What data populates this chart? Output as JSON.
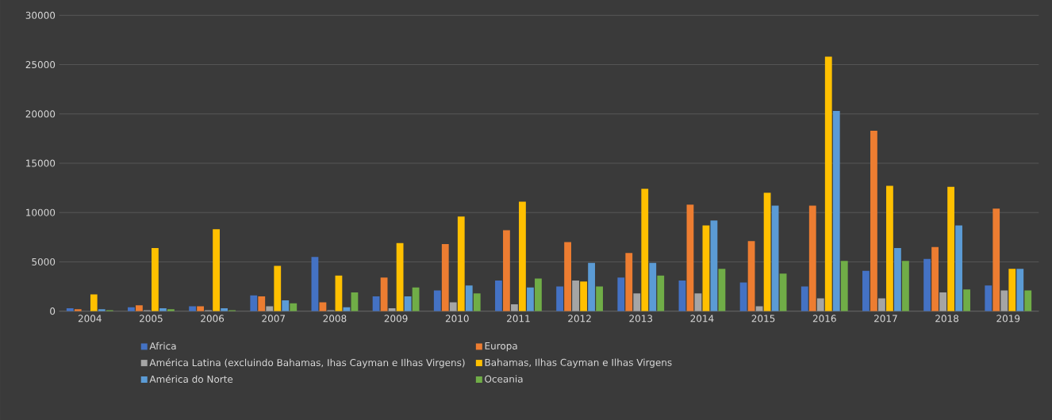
{
  "chart_data": {
    "type": "bar",
    "categories": [
      "2004",
      "2005",
      "2006",
      "2007",
      "2008",
      "2009",
      "2010",
      "2011",
      "2012",
      "2013",
      "2014",
      "2015",
      "2016",
      "2017",
      "2018",
      "2019"
    ],
    "series": [
      {
        "name": "Africa",
        "color": "#4472c4",
        "values": [
          300,
          400,
          500,
          1600,
          5500,
          1500,
          2100,
          3100,
          2500,
          3400,
          3100,
          2900,
          2500,
          4100,
          5300,
          2600
        ]
      },
      {
        "name": "Europa",
        "color": "#ed7d31",
        "values": [
          200,
          600,
          500,
          1500,
          900,
          3400,
          6800,
          8200,
          7000,
          5900,
          10800,
          7100,
          10700,
          18300,
          6500,
          10400
        ]
      },
      {
        "name": "América Latina (excluindo Bahamas, Ihas Cayman e Ilhas Virgens)",
        "color": "#a5a5a5",
        "values": [
          null,
          100,
          100,
          500,
          100,
          300,
          900,
          700,
          3100,
          1800,
          1800,
          500,
          1300,
          1300,
          1900,
          2100
        ]
      },
      {
        "name": "Bahamas, Ilhas Cayman e Ilhas Virgens",
        "color": "#ffc000",
        "values": [
          1700,
          6400,
          8300,
          4600,
          3600,
          6900,
          9600,
          11100,
          3000,
          12400,
          8700,
          12000,
          25800,
          12700,
          12600,
          4300
        ]
      },
      {
        "name": "América do Norte",
        "color": "#5b9bd5",
        "values": [
          200,
          300,
          300,
          1100,
          400,
          1500,
          2600,
          2400,
          4900,
          4900,
          9200,
          10700,
          20300,
          6400,
          8700,
          4300
        ]
      },
      {
        "name": "Oceania",
        "color": "#70ad47",
        "values": [
          100,
          200,
          100,
          800,
          1900,
          2400,
          1800,
          3300,
          2500,
          3600,
          4300,
          3800,
          5100,
          5100,
          2200,
          2100
        ]
      }
    ],
    "ylim": [
      0,
      30000
    ],
    "yticks": [
      0,
      5000,
      10000,
      15000,
      20000,
      25000,
      30000
    ],
    "grid": "y",
    "legend": "bottom"
  }
}
